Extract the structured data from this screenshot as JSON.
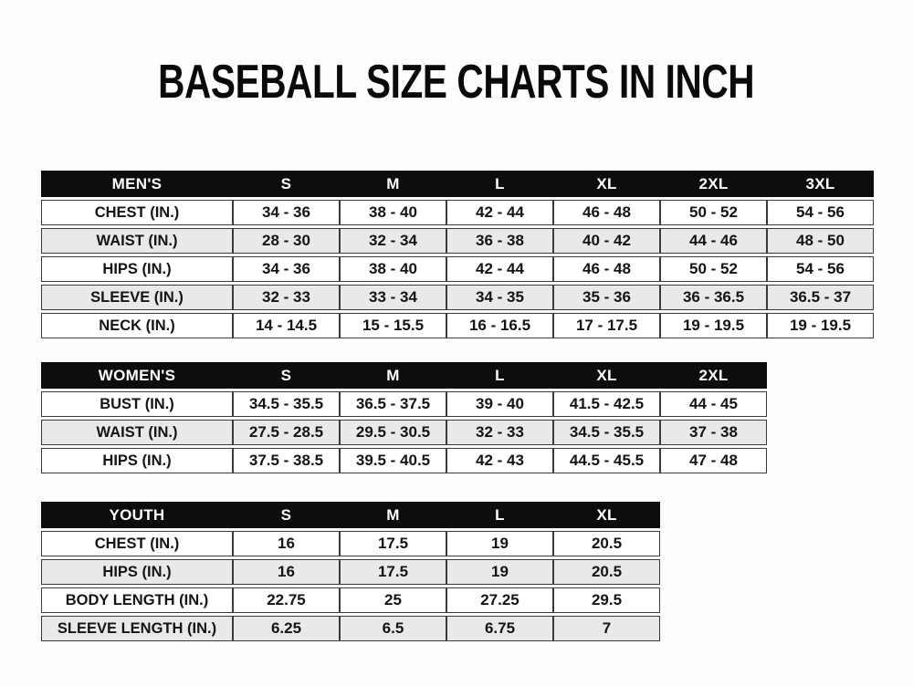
{
  "title": "BASEBALL SIZE CHARTS IN INCH",
  "colors": {
    "page_bg": "#fdfdfc",
    "header_bg": "#0d0d0d",
    "header_text": "#ffffff",
    "row_bg": "#ffffff",
    "row_alt_bg": "#e9e9e9",
    "border": "#3a3a3a",
    "text": "#141414"
  },
  "chart_data": [
    {
      "type": "table",
      "id": "mens",
      "title": "MEN'S",
      "columns": [
        "MEN'S",
        "S",
        "M",
        "L",
        "XL",
        "2XL",
        "3XL"
      ],
      "rows": [
        [
          "CHEST (IN.)",
          "34 - 36",
          "38 - 40",
          "42 - 44",
          "46 - 48",
          "50 - 52",
          "54 - 56"
        ],
        [
          "WAIST (IN.)",
          "28 - 30",
          "32 - 34",
          "36 - 38",
          "40 - 42",
          "44 - 46",
          "48 - 50"
        ],
        [
          "HIPS (IN.)",
          "34 - 36",
          "38 - 40",
          "42 - 44",
          "46 - 48",
          "50 - 52",
          "54 - 56"
        ],
        [
          "SLEEVE (IN.)",
          "32 - 33",
          "33 - 34",
          "34 - 35",
          "35 - 36",
          "36 - 36.5",
          "36.5 - 37"
        ],
        [
          "NECK (IN.)",
          "14 - 14.5",
          "15 - 15.5",
          "16 - 16.5",
          "17 - 17.5",
          "19 - 19.5",
          "19 - 19.5"
        ]
      ]
    },
    {
      "type": "table",
      "id": "womens",
      "title": "WOMEN'S",
      "columns": [
        "WOMEN'S",
        "S",
        "M",
        "L",
        "XL",
        "2XL"
      ],
      "rows": [
        [
          "BUST (IN.)",
          "34.5 - 35.5",
          "36.5 - 37.5",
          "39 - 40",
          "41.5 - 42.5",
          "44 - 45"
        ],
        [
          "WAIST (IN.)",
          "27.5 - 28.5",
          "29.5 - 30.5",
          "32 - 33",
          "34.5 - 35.5",
          "37 - 38"
        ],
        [
          "HIPS (IN.)",
          "37.5 - 38.5",
          "39.5 - 40.5",
          "42 - 43",
          "44.5 - 45.5",
          "47 - 48"
        ]
      ]
    },
    {
      "type": "table",
      "id": "youth",
      "title": "YOUTH",
      "columns": [
        "YOUTH",
        "S",
        "M",
        "L",
        "XL"
      ],
      "rows": [
        [
          "CHEST (IN.)",
          "16",
          "17.5",
          "19",
          "20.5"
        ],
        [
          "HIPS (IN.)",
          "16",
          "17.5",
          "19",
          "20.5"
        ],
        [
          "BODY LENGTH (IN.)",
          "22.75",
          "25",
          "27.25",
          "29.5"
        ],
        [
          "SLEEVE LENGTH (IN.)",
          "6.25",
          "6.5",
          "6.75",
          "7"
        ]
      ]
    }
  ]
}
